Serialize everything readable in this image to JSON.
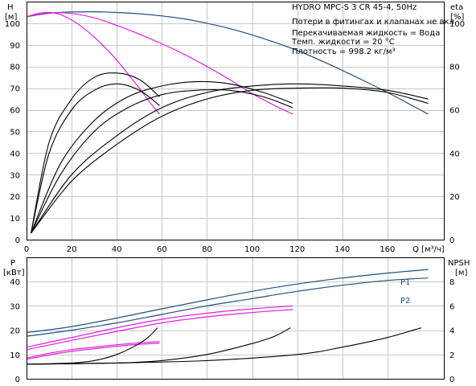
{
  "chart_data": [
    {
      "type": "line",
      "title": "HYDRO MPC-S 3 CR 45-4, 50Hz",
      "annotations": [
        "Потери в фитингах и клапанах не вкл.",
        "Перекачиваемая жидкость = Вода",
        "Темп. жидкости = 20 °C",
        "Плотность = 998.2 кг/м³"
      ],
      "xlabel": "Q [м³/ч]",
      "xlim": [
        0,
        185
      ],
      "x_ticks": [
        0,
        20,
        40,
        60,
        80,
        100,
        120,
        140,
        160
      ],
      "left_axis": {
        "label_top": "H",
        "label_unit": "[м]",
        "ylim": [
          0,
          110
        ],
        "ticks": [
          0,
          10,
          20,
          30,
          40,
          50,
          60,
          70,
          80,
          90,
          100
        ]
      },
      "right_axis": {
        "label_top": "eta",
        "label_unit": "[%]",
        "ylim": [
          0,
          110
        ],
        "ticks": [
          0,
          20,
          40,
          60,
          80,
          100
        ]
      },
      "grid": true,
      "series": [
        {
          "axis": "left",
          "color": "#1f4f7f",
          "x": [
            0,
            10,
            20,
            30,
            40,
            50,
            60,
            70,
            80,
            90,
            100,
            110,
            120,
            130,
            140,
            150,
            160,
            170,
            178
          ],
          "values": [
            103,
            104.6,
            105.2,
            105.3,
            105,
            104.4,
            103.4,
            102,
            100,
            97.6,
            94.6,
            91.2,
            87.4,
            83,
            78.2,
            73.2,
            68,
            62.5,
            58
          ]
        },
        {
          "axis": "left",
          "color": "#e020e0",
          "x": [
            0,
            10,
            20,
            30,
            40,
            50,
            60,
            70,
            80,
            90,
            100,
            110,
            118
          ],
          "values": [
            103,
            104.8,
            104.5,
            102.5,
            99,
            95,
            90.5,
            85.6,
            80,
            74,
            67.5,
            62,
            58
          ]
        },
        {
          "axis": "left",
          "color": "#e020e0",
          "x": [
            0,
            5,
            10,
            15,
            20,
            25,
            30,
            35,
            40,
            45,
            50,
            55,
            59
          ],
          "values": [
            103,
            104.5,
            105,
            104,
            101.5,
            98,
            93.6,
            88.6,
            83,
            76.5,
            70,
            63,
            58
          ]
        },
        {
          "axis": "right",
          "color": "#000000",
          "x": [
            2,
            20,
            40,
            60,
            80,
            100,
            120,
            140,
            160,
            178
          ],
          "values": [
            3,
            30,
            48,
            61,
            68,
            71,
            72,
            71,
            69,
            65
          ]
        },
        {
          "axis": "right",
          "color": "#000000",
          "x": [
            2,
            20,
            40,
            60,
            80,
            100,
            120,
            140,
            160,
            178
          ],
          "values": [
            3,
            27,
            44,
            57,
            65,
            69,
            70,
            70,
            68,
            63
          ]
        },
        {
          "axis": "right",
          "color": "#000000",
          "x": [
            2,
            15,
            30,
            45,
            60,
            75,
            90,
            105,
            118
          ],
          "values": [
            3,
            35,
            55,
            66,
            71,
            73,
            72,
            68,
            63
          ]
        },
        {
          "axis": "right",
          "color": "#000000",
          "x": [
            2,
            15,
            30,
            45,
            60,
            75,
            90,
            105,
            118
          ],
          "values": [
            3,
            30,
            50,
            61,
            67,
            69,
            69,
            66,
            61
          ]
        },
        {
          "axis": "right",
          "color": "#000000",
          "x": [
            2,
            10,
            20,
            30,
            40,
            50,
            59
          ],
          "values": [
            3,
            45,
            65,
            75,
            77,
            74,
            66
          ]
        },
        {
          "axis": "right",
          "color": "#000000",
          "x": [
            2,
            10,
            20,
            30,
            40,
            50,
            59
          ],
          "values": [
            3,
            40,
            60,
            69,
            72,
            69,
            62
          ]
        }
      ]
    },
    {
      "type": "line",
      "xlim": [
        0,
        185
      ],
      "left_axis": {
        "label_top": "P",
        "label_unit": "[кВт]",
        "ylim": [
          0,
          50
        ],
        "ticks": [
          0,
          10,
          20,
          30,
          40
        ]
      },
      "right_axis": {
        "label_top": "NPSH",
        "label_unit": "[м]",
        "ylim": [
          0,
          10
        ],
        "ticks": [
          0,
          2,
          4,
          6,
          8
        ]
      },
      "grid": true,
      "series": [
        {
          "name": "P1",
          "axis": "left",
          "color": "#1f4f7f",
          "x": [
            0,
            20,
            40,
            60,
            80,
            100,
            120,
            140,
            160,
            178
          ],
          "values": [
            19,
            21.5,
            25,
            28.8,
            32.5,
            36,
            39,
            41.5,
            43.5,
            45
          ]
        },
        {
          "name": "P2",
          "axis": "left",
          "color": "#1f4f7f",
          "x": [
            0,
            20,
            40,
            60,
            80,
            100,
            120,
            140,
            160,
            178
          ],
          "values": [
            17.5,
            20,
            23,
            26.5,
            30,
            33,
            36,
            38.5,
            40.5,
            41.5
          ]
        },
        {
          "axis": "left",
          "color": "#e020e0",
          "x": [
            0,
            20,
            40,
            60,
            80,
            100,
            118
          ],
          "values": [
            13,
            17,
            21,
            24.5,
            27,
            28.8,
            30
          ]
        },
        {
          "axis": "left",
          "color": "#e020e0",
          "x": [
            0,
            20,
            40,
            60,
            80,
            100,
            118
          ],
          "values": [
            12,
            15.8,
            19.5,
            23,
            25.5,
            27.3,
            28.5
          ]
        },
        {
          "axis": "left",
          "color": "#e020e0",
          "x": [
            0,
            10,
            20,
            30,
            40,
            50,
            59
          ],
          "values": [
            8.5,
            10.5,
            12,
            13,
            14,
            14.8,
            15.3
          ]
        },
        {
          "axis": "left",
          "color": "#e020e0",
          "x": [
            0,
            10,
            20,
            30,
            40,
            50,
            59
          ],
          "values": [
            8,
            9.8,
            11.3,
            12.4,
            13.4,
            14.2,
            14.7
          ]
        },
        {
          "axis": "right",
          "color": "#000000",
          "x": [
            0,
            40,
            80,
            120,
            140,
            160,
            175
          ],
          "values": [
            1.2,
            1.3,
            1.5,
            2,
            2.6,
            3.4,
            4.2
          ]
        },
        {
          "axis": "right",
          "color": "#000000",
          "x": [
            0,
            40,
            60,
            80,
            100,
            110,
            117
          ],
          "values": [
            1.2,
            1.3,
            1.5,
            2,
            2.9,
            3.5,
            4.2
          ]
        },
        {
          "axis": "right",
          "color": "#000000",
          "x": [
            0,
            20,
            30,
            40,
            50,
            55,
            58
          ],
          "values": [
            1.2,
            1.3,
            1.5,
            2,
            2.9,
            3.6,
            4.2
          ]
        }
      ],
      "series_labels": [
        "P1",
        "P2"
      ]
    }
  ]
}
